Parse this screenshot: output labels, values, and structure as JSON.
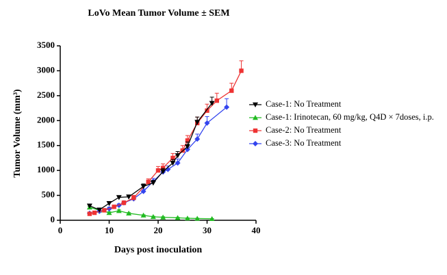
{
  "chart_data": {
    "type": "line",
    "title": "LoVo Mean Tumor Volume ± SEM",
    "x_label": "Days post inoculation",
    "y_label": "Tumor Volume (mm³)",
    "xlim": [
      0,
      40
    ],
    "xticks": [
      0,
      10,
      20,
      30,
      40
    ],
    "ylim": [
      0,
      3500
    ],
    "yticks": [
      0,
      500,
      1000,
      1500,
      2000,
      2500,
      3000,
      3500
    ],
    "legend": "right",
    "series": [
      {
        "name": "Case-1: No Treatment",
        "color": "#000000",
        "marker": "triangle-down",
        "x": [
          6,
          8,
          10,
          12,
          14,
          17,
          19,
          21,
          23,
          24,
          26,
          28,
          31
        ],
        "values": [
          290,
          210,
          340,
          460,
          470,
          680,
          750,
          980,
          1150,
          1300,
          1480,
          1970,
          2350
        ],
        "errors": [
          20,
          20,
          30,
          30,
          40,
          50,
          50,
          60,
          70,
          80,
          90,
          100,
          120
        ]
      },
      {
        "name": "Case-1: Irinotecan, 60 mg/kg, Q4D × 7doses, i.p.",
        "color": "#22bb22",
        "marker": "triangle-up",
        "x": [
          6,
          8,
          10,
          12,
          14,
          17,
          19,
          21,
          24,
          26,
          28,
          31
        ],
        "values": [
          260,
          200,
          150,
          190,
          140,
          100,
          70,
          60,
          50,
          40,
          35,
          30
        ],
        "errors": [
          20,
          20,
          20,
          20,
          15,
          10,
          10,
          10,
          8,
          8,
          6,
          5
        ]
      },
      {
        "name": "Case-2: No Treatment",
        "color": "#ee3333",
        "marker": "square",
        "x": [
          6,
          7,
          9,
          11,
          13,
          15,
          18,
          20,
          21,
          23,
          25,
          26,
          28,
          30,
          32,
          35,
          37
        ],
        "values": [
          130,
          150,
          200,
          270,
          350,
          450,
          770,
          1000,
          1050,
          1250,
          1400,
          1600,
          1950,
          2200,
          2400,
          2600,
          3000
        ],
        "errors": [
          20,
          20,
          30,
          30,
          40,
          50,
          60,
          80,
          80,
          90,
          100,
          100,
          120,
          130,
          150,
          150,
          200
        ]
      },
      {
        "name": "Case-3: No Treatment",
        "color": "#3344ee",
        "marker": "diamond",
        "x": [
          6,
          8,
          10,
          12,
          13,
          15,
          17,
          19,
          21,
          22,
          24,
          26,
          28,
          30,
          34
        ],
        "values": [
          140,
          180,
          230,
          300,
          350,
          430,
          580,
          780,
          970,
          1020,
          1150,
          1420,
          1630,
          1950,
          2270
        ],
        "errors": [
          20,
          20,
          30,
          30,
          30,
          40,
          50,
          60,
          70,
          70,
          80,
          90,
          100,
          130,
          170
        ]
      }
    ]
  }
}
